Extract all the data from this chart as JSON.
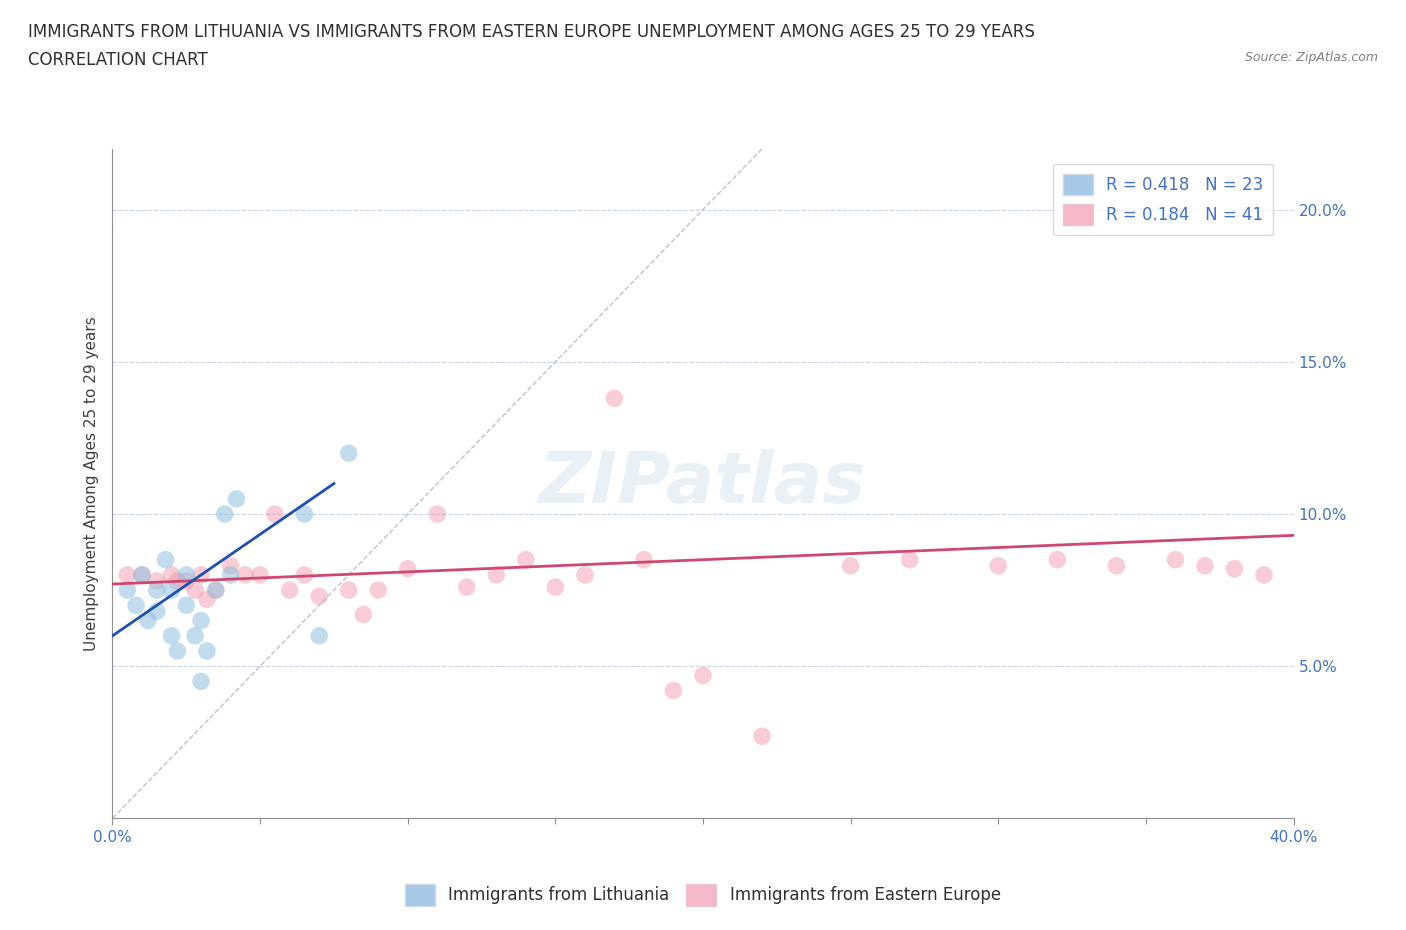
{
  "title_line1": "IMMIGRANTS FROM LITHUANIA VS IMMIGRANTS FROM EASTERN EUROPE UNEMPLOYMENT AMONG AGES 25 TO 29 YEARS",
  "title_line2": "CORRELATION CHART",
  "source_text": "Source: ZipAtlas.com",
  "ylabel": "Unemployment Among Ages 25 to 29 years",
  "xlim": [
    0.0,
    0.4
  ],
  "ylim": [
    0.0,
    0.22
  ],
  "xtick_vals": [
    0.0,
    0.4
  ],
  "xtick_labels": [
    "0.0%",
    "40.0%"
  ],
  "ytick_vals": [
    0.05,
    0.1,
    0.15,
    0.2
  ],
  "ytick_labels": [
    "5.0%",
    "10.0%",
    "15.0%",
    "20.0%"
  ],
  "legend_label1": "R = 0.418   N = 23",
  "legend_label2": "R = 0.184   N = 41",
  "legend_color1": "#a8c8e8",
  "legend_color2": "#f4b8c8",
  "scatter_blue_x": [
    0.005,
    0.008,
    0.01,
    0.012,
    0.015,
    0.015,
    0.018,
    0.02,
    0.02,
    0.022,
    0.025,
    0.025,
    0.028,
    0.03,
    0.03,
    0.032,
    0.035,
    0.038,
    0.04,
    0.042,
    0.065,
    0.07,
    0.08
  ],
  "scatter_blue_y": [
    0.075,
    0.07,
    0.08,
    0.065,
    0.075,
    0.068,
    0.085,
    0.075,
    0.06,
    0.055,
    0.08,
    0.07,
    0.06,
    0.065,
    0.045,
    0.055,
    0.075,
    0.1,
    0.08,
    0.105,
    0.1,
    0.06,
    0.12
  ],
  "scatter_pink_x": [
    0.005,
    0.01,
    0.015,
    0.02,
    0.022,
    0.025,
    0.028,
    0.03,
    0.032,
    0.035,
    0.04,
    0.045,
    0.05,
    0.055,
    0.06,
    0.065,
    0.07,
    0.08,
    0.085,
    0.09,
    0.1,
    0.11,
    0.12,
    0.13,
    0.14,
    0.15,
    0.16,
    0.17,
    0.18,
    0.19,
    0.2,
    0.22,
    0.25,
    0.27,
    0.3,
    0.32,
    0.34,
    0.36,
    0.37,
    0.38,
    0.39
  ],
  "scatter_pink_y": [
    0.08,
    0.08,
    0.078,
    0.08,
    0.078,
    0.078,
    0.075,
    0.08,
    0.072,
    0.075,
    0.083,
    0.08,
    0.08,
    0.1,
    0.075,
    0.08,
    0.073,
    0.075,
    0.067,
    0.075,
    0.082,
    0.1,
    0.076,
    0.08,
    0.085,
    0.076,
    0.08,
    0.138,
    0.085,
    0.042,
    0.047,
    0.027,
    0.083,
    0.085,
    0.083,
    0.085,
    0.083,
    0.085,
    0.083,
    0.082,
    0.08
  ],
  "blue_line_x": [
    0.0,
    0.075
  ],
  "blue_line_y": [
    0.06,
    0.11
  ],
  "pink_line_x": [
    0.0,
    0.4
  ],
  "pink_line_y": [
    0.077,
    0.093
  ],
  "dashed_line_x": [
    0.0,
    0.22
  ],
  "dashed_line_y": [
    0.0,
    0.22
  ],
  "blue_scatter_color": "#90c0e0",
  "pink_scatter_color": "#f090a8",
  "blue_line_color": "#2050b0",
  "pink_line_color": "#d04870",
  "dashed_line_color": "#b8c4d0",
  "watermark_text": "ZIPatlas",
  "background_color": "#ffffff",
  "title_fontsize": 12,
  "axis_label_fontsize": 11,
  "tick_fontsize": 11,
  "legend_fontsize": 12
}
